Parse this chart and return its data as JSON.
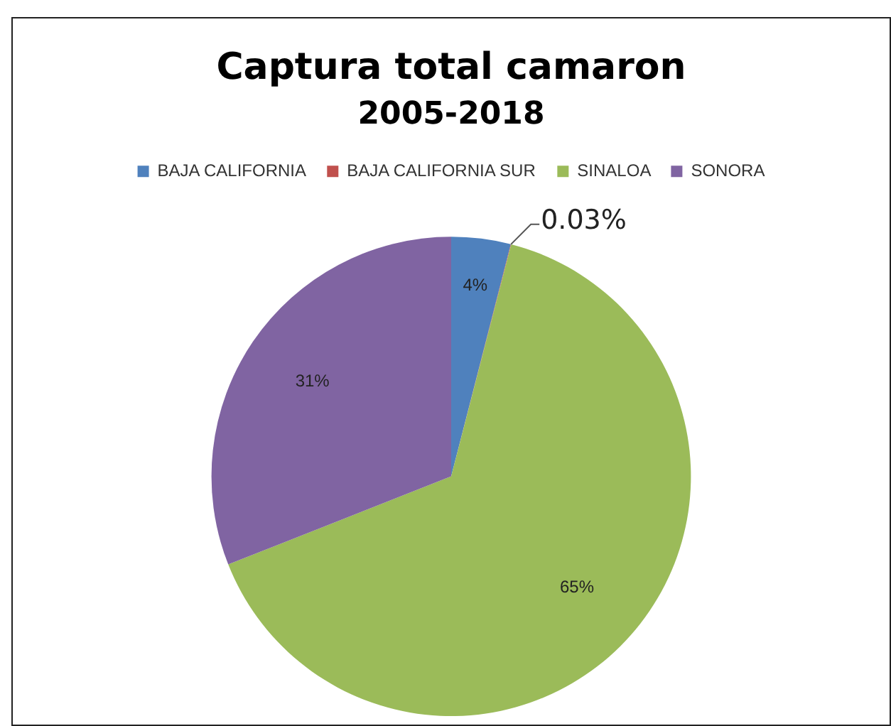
{
  "chart_data": {
    "type": "pie",
    "title": "Captura total camaron",
    "subtitle": "2005-2018",
    "categories": [
      "BAJA CALIFORNIA",
      "BAJA CALIFORNIA SUR",
      "SINALOA",
      "SONORA"
    ],
    "values": [
      4,
      0.03,
      65,
      31
    ],
    "colors": [
      "#4f81bd",
      "#c0504d",
      "#9bbb59",
      "#8064a2"
    ],
    "value_labels": [
      "4%",
      "0.03%",
      "65%",
      "31%"
    ],
    "legend": "top"
  }
}
